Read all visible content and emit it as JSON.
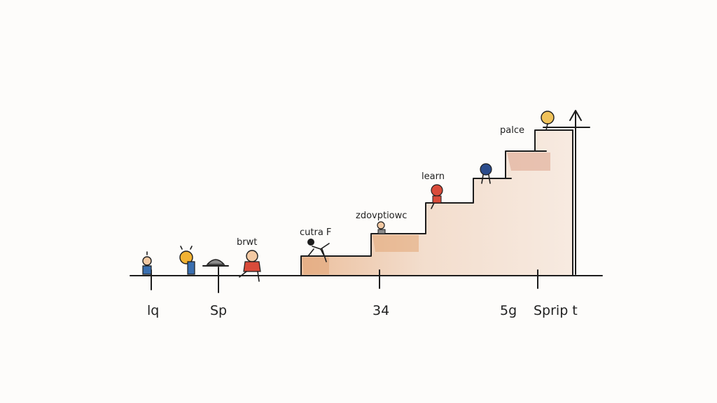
{
  "colors": {
    "ink": "#1d1d1d",
    "paper": "#fdfcfa",
    "stair_wash": "#f0dccd",
    "stair_wash_dark": "#e3b38e",
    "figure_blue": "#3a6fb0",
    "figure_yellow": "#f2b233",
    "figure_red": "#d94b3a",
    "figure_navy": "#2b4c8c",
    "figure_gold": "#f0c25a",
    "figure_gray": "#8a8a8a"
  },
  "axis": {
    "tick_labels": [
      "lq",
      "Sp",
      "34",
      "5g",
      "Sprip t"
    ]
  },
  "step_labels": {
    "ground": "brwt",
    "step1": "cutra F",
    "step2": "zdovptiowc",
    "step3": "learn",
    "step5": "palce"
  },
  "figures": [
    {
      "name": "figure-blue",
      "color": "figure_blue"
    },
    {
      "name": "figure-yellow-lightbulb",
      "color": "figure_yellow"
    },
    {
      "name": "figure-helmet",
      "color": "figure_gray"
    },
    {
      "name": "figure-red-sitting",
      "color": "figure_red"
    },
    {
      "name": "figure-climber-step1",
      "color": "ink"
    },
    {
      "name": "figure-step2",
      "color": "figure_gray"
    },
    {
      "name": "figure-red-step3",
      "color": "figure_red"
    },
    {
      "name": "figure-navy-step4",
      "color": "figure_navy"
    },
    {
      "name": "figure-gold-top",
      "color": "figure_gold"
    }
  ]
}
